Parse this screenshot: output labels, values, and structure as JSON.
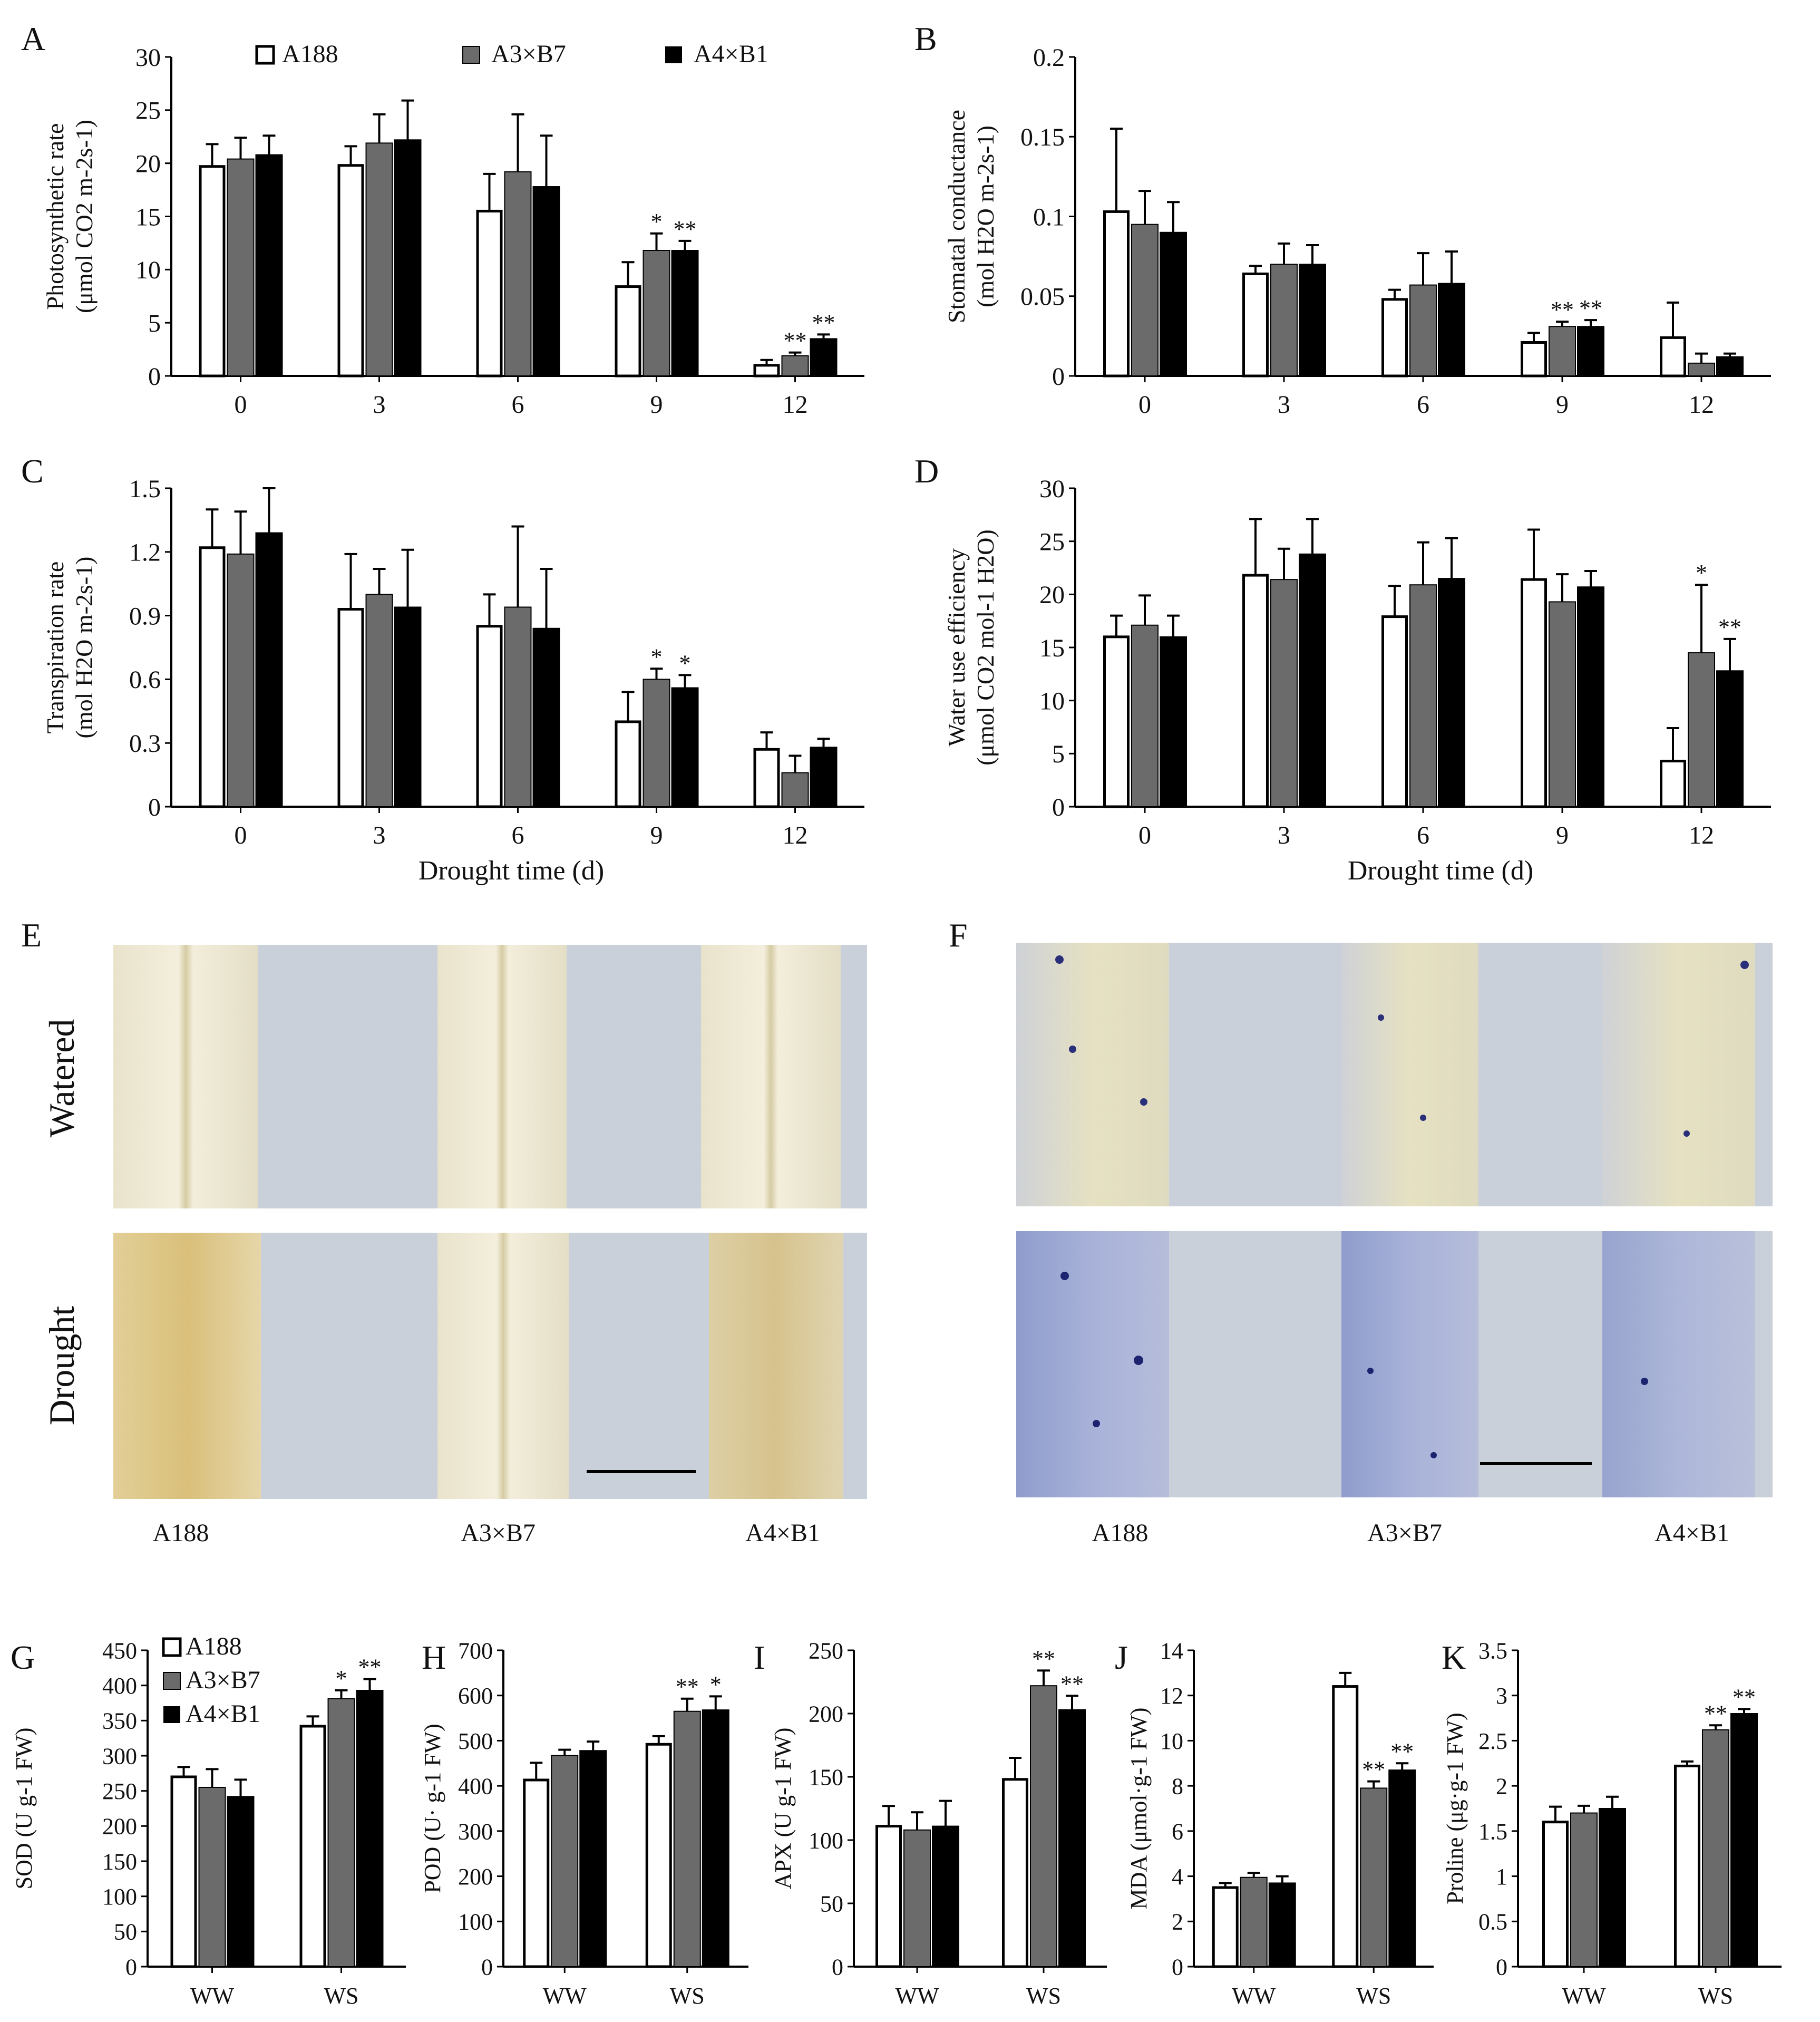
{
  "legend": [
    "A188",
    "A3×B7",
    "A4×B1"
  ],
  "colors": {
    "A188": "#ffffff",
    "A3×B7": "#6b6b6b",
    "A4×B1": "#000000"
  },
  "panelsAD": {
    "xlabel": "Drought time (d)",
    "x_ticks": [
      "0",
      "3",
      "6",
      "9",
      "12"
    ]
  },
  "chart_data": [
    {
      "id": "A",
      "type": "bar",
      "title": "",
      "ylabel": "Photosynthetic rate (μmol CO2 m-2s-1)",
      "ylabel_lines": [
        "Photosynthetic rate",
        "(μmol CO2 m-2s-1)"
      ],
      "categories": [
        "0",
        "3",
        "6",
        "9",
        "12"
      ],
      "ylim": [
        0,
        30
      ],
      "yticks": [
        "0",
        "5",
        "10",
        "15",
        "20",
        "25",
        "30"
      ],
      "series": [
        {
          "name": "A188",
          "values": [
            19.7,
            19.8,
            15.5,
            8.4,
            1.0
          ],
          "err": [
            2.1,
            1.8,
            3.5,
            2.3,
            0.5
          ],
          "sig": [
            "",
            "",
            "",
            "",
            ""
          ]
        },
        {
          "name": "A3×B7",
          "values": [
            20.4,
            21.9,
            19.2,
            11.8,
            1.9
          ],
          "err": [
            2.0,
            2.7,
            5.4,
            1.6,
            0.3
          ],
          "sig": [
            "",
            "",
            "",
            "*",
            "**"
          ]
        },
        {
          "name": "A4×B1",
          "values": [
            20.8,
            22.2,
            17.8,
            11.8,
            3.5
          ],
          "err": [
            1.8,
            3.7,
            4.8,
            0.9,
            0.4
          ],
          "sig": [
            "",
            "",
            "",
            "**",
            "**"
          ]
        }
      ]
    },
    {
      "id": "B",
      "type": "bar",
      "title": "",
      "ylabel": "Stomatal conductance (mol H2O m-2s-1)",
      "ylabel_lines": [
        "Stomatal conductance",
        "(mol H2O m-2s-1)"
      ],
      "categories": [
        "0",
        "3",
        "6",
        "9",
        "12"
      ],
      "ylim": [
        0,
        0.2
      ],
      "yticks": [
        "0",
        "0.05",
        "0.1",
        "0.15",
        "0.2"
      ],
      "series": [
        {
          "name": "A188",
          "values": [
            0.103,
            0.064,
            0.048,
            0.021,
            0.024
          ],
          "err": [
            0.052,
            0.005,
            0.006,
            0.006,
            0.022
          ],
          "sig": [
            "",
            "",
            "",
            "",
            ""
          ]
        },
        {
          "name": "A3×B7",
          "values": [
            0.095,
            0.07,
            0.057,
            0.031,
            0.008
          ],
          "err": [
            0.021,
            0.013,
            0.02,
            0.003,
            0.006
          ],
          "sig": [
            "",
            "",
            "",
            "**",
            ""
          ]
        },
        {
          "name": "A4×B1",
          "values": [
            0.09,
            0.07,
            0.058,
            0.031,
            0.012
          ],
          "err": [
            0.019,
            0.012,
            0.02,
            0.004,
            0.002
          ],
          "sig": [
            "",
            "",
            "",
            "**",
            ""
          ]
        }
      ]
    },
    {
      "id": "C",
      "type": "bar",
      "title": "",
      "ylabel": "Transpiration rate (mol H2O m-2s-1)",
      "ylabel_lines": [
        "Transpiration rate",
        "(mol H2O m-2s-1)"
      ],
      "categories": [
        "0",
        "3",
        "6",
        "9",
        "12"
      ],
      "ylim": [
        0,
        1.5
      ],
      "yticks": [
        "0",
        "0.3",
        "0.6",
        "0.9",
        "1.2",
        "1.5"
      ],
      "series": [
        {
          "name": "A188",
          "values": [
            1.22,
            0.93,
            0.85,
            0.4,
            0.27
          ],
          "err": [
            0.18,
            0.26,
            0.15,
            0.14,
            0.08
          ],
          "sig": [
            "",
            "",
            "",
            "",
            ""
          ]
        },
        {
          "name": "A3×B7",
          "values": [
            1.19,
            1.0,
            0.94,
            0.6,
            0.16
          ],
          "err": [
            0.2,
            0.12,
            0.38,
            0.05,
            0.08
          ],
          "sig": [
            "",
            "",
            "",
            "*",
            ""
          ]
        },
        {
          "name": "A4×B1",
          "values": [
            1.29,
            0.94,
            0.84,
            0.56,
            0.28
          ],
          "err": [
            0.21,
            0.27,
            0.28,
            0.06,
            0.04
          ],
          "sig": [
            "",
            "",
            "",
            "*",
            ""
          ]
        }
      ]
    },
    {
      "id": "D",
      "type": "bar",
      "title": "",
      "ylabel": "Water use efficiency (μmol CO2 mol-1 H2O)",
      "ylabel_lines": [
        "Water use efficiency",
        "(μmol CO2 mol-1 H2O)"
      ],
      "categories": [
        "0",
        "3",
        "6",
        "9",
        "12"
      ],
      "ylim": [
        0,
        30
      ],
      "yticks": [
        "0",
        "5",
        "10",
        "15",
        "20",
        "25",
        "30"
      ],
      "series": [
        {
          "name": "A188",
          "values": [
            16.0,
            21.8,
            17.9,
            21.4,
            4.3
          ],
          "err": [
            2.0,
            5.3,
            2.9,
            4.7,
            3.1
          ],
          "sig": [
            "",
            "",
            "",
            "",
            ""
          ]
        },
        {
          "name": "A3×B7",
          "values": [
            17.1,
            21.4,
            20.9,
            19.3,
            14.5
          ],
          "err": [
            2.8,
            2.9,
            4.0,
            2.6,
            6.4
          ],
          "sig": [
            "",
            "",
            "",
            "",
            "*"
          ]
        },
        {
          "name": "A4×B1",
          "values": [
            16.0,
            23.8,
            21.5,
            20.7,
            12.8
          ],
          "err": [
            2.0,
            3.3,
            3.8,
            1.5,
            3.0
          ],
          "sig": [
            "",
            "",
            "",
            "",
            "**"
          ]
        }
      ]
    },
    {
      "id": "G",
      "type": "bar",
      "title": "",
      "ylabel": "SOD (U g-1 FW)",
      "categories": [
        "WW",
        "WS"
      ],
      "ylim": [
        0,
        450
      ],
      "yticks": [
        "0",
        "50",
        "100",
        "150",
        "200",
        "250",
        "300",
        "350",
        "400",
        "450"
      ],
      "series": [
        {
          "name": "A188",
          "values": [
            270,
            342
          ],
          "err": [
            14,
            14
          ],
          "sig": [
            "",
            ""
          ]
        },
        {
          "name": "A3×B7",
          "values": [
            255,
            381
          ],
          "err": [
            26,
            12
          ],
          "sig": [
            "",
            "*"
          ]
        },
        {
          "name": "A4×B1",
          "values": [
            242,
            393
          ],
          "err": [
            24,
            16
          ],
          "sig": [
            "",
            "**"
          ]
        }
      ]
    },
    {
      "id": "H",
      "type": "bar",
      "title": "",
      "ylabel": "POD (U· g-1 FW)",
      "categories": [
        "WW",
        "WS"
      ],
      "ylim": [
        0,
        700
      ],
      "yticks": [
        "0",
        "100",
        "200",
        "300",
        "400",
        "500",
        "600",
        "700"
      ],
      "series": [
        {
          "name": "A188",
          "values": [
            413,
            492
          ],
          "err": [
            38,
            18
          ],
          "sig": [
            "",
            ""
          ]
        },
        {
          "name": "A3×B7",
          "values": [
            467,
            565
          ],
          "err": [
            13,
            28
          ],
          "sig": [
            "",
            "**"
          ]
        },
        {
          "name": "A4×B1",
          "values": [
            478,
            568
          ],
          "err": [
            20,
            30
          ],
          "sig": [
            "",
            "*"
          ]
        }
      ]
    },
    {
      "id": "I",
      "type": "bar",
      "title": "",
      "ylabel": "APX (U g-1 FW)",
      "categories": [
        "WW",
        "WS"
      ],
      "ylim": [
        0,
        250
      ],
      "yticks": [
        "0",
        "50",
        "100",
        "150",
        "200",
        "250"
      ],
      "series": [
        {
          "name": "A188",
          "values": [
            111,
            148
          ],
          "err": [
            16,
            17
          ],
          "sig": [
            "",
            ""
          ]
        },
        {
          "name": "A3×B7",
          "values": [
            108,
            222
          ],
          "err": [
            14,
            12
          ],
          "sig": [
            "",
            "**"
          ]
        },
        {
          "name": "A4×B1",
          "values": [
            111,
            203
          ],
          "err": [
            20,
            11
          ],
          "sig": [
            "",
            "**"
          ]
        }
      ]
    },
    {
      "id": "J",
      "type": "bar",
      "title": "",
      "ylabel": "MDA (μmol·g-1 FW)",
      "categories": [
        "WW",
        "WS"
      ],
      "ylim": [
        0,
        14
      ],
      "yticks": [
        "0",
        "2",
        "4",
        "6",
        "8",
        "10",
        "12",
        "14"
      ],
      "series": [
        {
          "name": "A188",
          "values": [
            3.5,
            12.4
          ],
          "err": [
            0.2,
            0.6
          ],
          "sig": [
            "",
            ""
          ]
        },
        {
          "name": "A3×B7",
          "values": [
            3.95,
            7.9
          ],
          "err": [
            0.2,
            0.3
          ],
          "sig": [
            "",
            "**"
          ]
        },
        {
          "name": "A4×B1",
          "values": [
            3.7,
            8.7
          ],
          "err": [
            0.3,
            0.3
          ],
          "sig": [
            "",
            "**"
          ]
        }
      ]
    },
    {
      "id": "K",
      "type": "bar",
      "title": "",
      "ylabel": "Proline (μg·g-1 FW)",
      "categories": [
        "WW",
        "WS"
      ],
      "ylim": [
        0,
        3.5
      ],
      "yticks": [
        "0",
        "0.5",
        "1",
        "1.5",
        "2",
        "2.5",
        "3",
        "3.5"
      ],
      "series": [
        {
          "name": "A188",
          "values": [
            1.6,
            2.22
          ],
          "err": [
            0.17,
            0.05
          ],
          "sig": [
            "",
            ""
          ]
        },
        {
          "name": "A3×B7",
          "values": [
            1.7,
            2.62
          ],
          "err": [
            0.08,
            0.05
          ],
          "sig": [
            "",
            "**"
          ]
        },
        {
          "name": "A4×B1",
          "values": [
            1.75,
            2.8
          ],
          "err": [
            0.13,
            0.05
          ],
          "sig": [
            "",
            "**"
          ]
        }
      ]
    }
  ],
  "photos": {
    "E": {
      "label": "E",
      "rows": [
        "Watered",
        "Drought"
      ],
      "cols": [
        "A188",
        "A3×B7",
        "A4×B1"
      ]
    },
    "F": {
      "label": "F",
      "cols": [
        "A188",
        "A3×B7",
        "A4×B1"
      ]
    }
  }
}
